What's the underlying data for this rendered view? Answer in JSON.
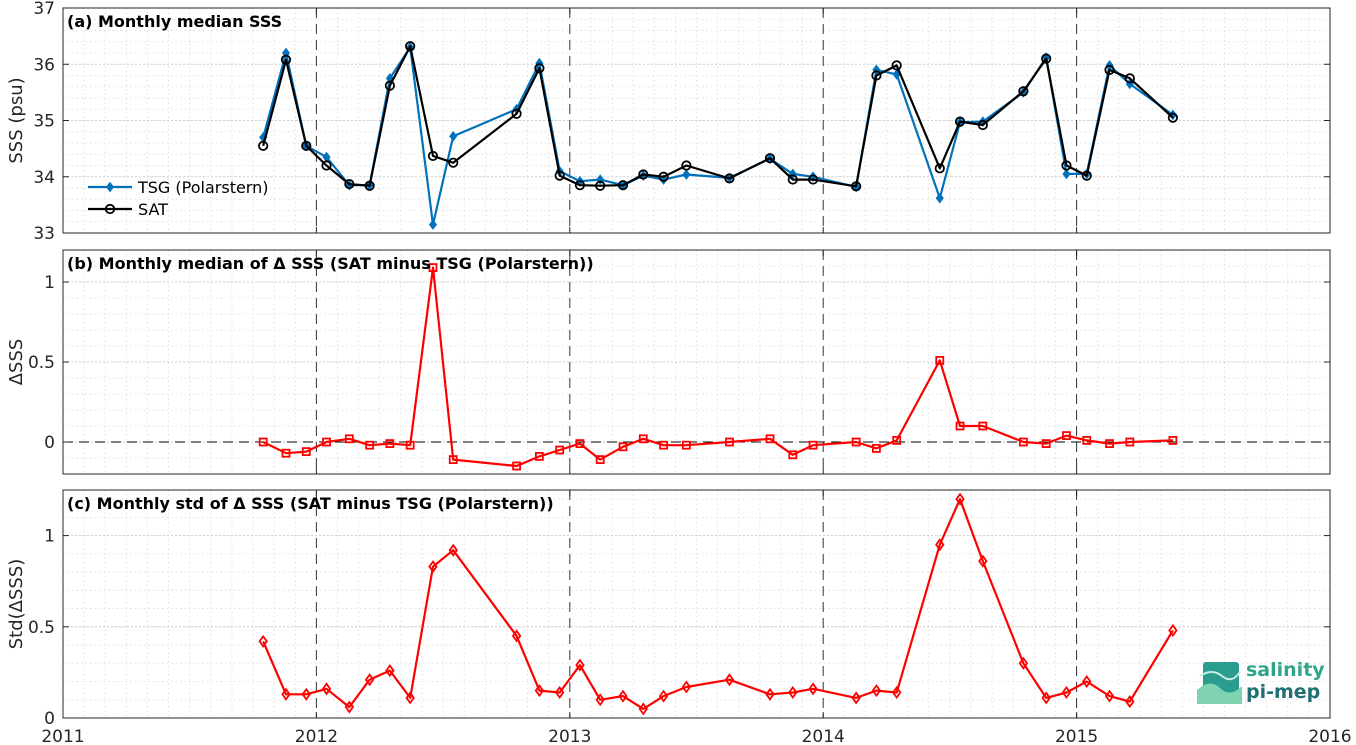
{
  "chart_data": [
    {
      "type": "line",
      "title": "(a) Monthly median SSS",
      "ylabel": "SSS (psu)",
      "xlim": [
        2011,
        2016
      ],
      "ylim": [
        33,
        37
      ],
      "yticks": [
        "33",
        "34",
        "35",
        "36",
        "37"
      ],
      "grid": true,
      "legend_placement": "lower-left",
      "series": [
        {
          "name": "TSG (Polarstern)",
          "color": "#0072bd",
          "marker": "diamond-filled",
          "x": [
            2011.79,
            2011.88,
            2011.96,
            2012.04,
            2012.13,
            2012.21,
            2012.29,
            2012.37,
            2012.46,
            2012.54,
            2012.79,
            2012.88,
            2012.96,
            2013.04,
            2013.12,
            2013.21,
            2013.29,
            2013.37,
            2013.46,
            2013.63,
            2013.79,
            2013.88,
            2013.96,
            2014.13,
            2014.21,
            2014.29,
            2014.46,
            2014.54,
            2014.63,
            2014.79,
            2014.88,
            2014.96,
            2015.04,
            2015.13,
            2015.21,
            2015.38
          ],
          "y": [
            34.7,
            36.2,
            34.55,
            34.35,
            33.85,
            33.85,
            35.75,
            36.3,
            33.15,
            34.72,
            35.2,
            36.02,
            34.1,
            33.92,
            33.95,
            33.85,
            34.02,
            33.95,
            34.04,
            33.98,
            34.32,
            34.05,
            34.0,
            33.82,
            35.9,
            35.82,
            33.62,
            34.97,
            34.98,
            35.5,
            36.12,
            34.05,
            34.05,
            35.98,
            35.65,
            35.1
          ]
        },
        {
          "name": "SAT",
          "color": "#000000",
          "marker": "circle-open",
          "x": [
            2011.79,
            2011.88,
            2011.96,
            2012.04,
            2012.13,
            2012.21,
            2012.29,
            2012.37,
            2012.46,
            2012.54,
            2012.79,
            2012.88,
            2012.96,
            2013.04,
            2013.12,
            2013.21,
            2013.29,
            2013.37,
            2013.46,
            2013.63,
            2013.79,
            2013.88,
            2013.96,
            2014.13,
            2014.21,
            2014.29,
            2014.46,
            2014.54,
            2014.63,
            2014.79,
            2014.88,
            2014.96,
            2015.04,
            2015.13,
            2015.21,
            2015.38
          ],
          "y": [
            34.55,
            36.08,
            34.55,
            34.2,
            33.87,
            33.84,
            35.62,
            36.32,
            34.37,
            34.25,
            35.12,
            35.93,
            34.02,
            33.85,
            33.84,
            33.85,
            34.04,
            34.0,
            34.2,
            33.97,
            34.33,
            33.95,
            33.95,
            33.83,
            35.8,
            35.98,
            34.15,
            34.98,
            34.92,
            35.52,
            36.1,
            34.2,
            34.02,
            35.9,
            35.75,
            35.05
          ]
        }
      ]
    },
    {
      "type": "line",
      "title": "(b) Monthly median of Δ SSS (SAT minus TSG (Polarstern))",
      "ylabel": "ΔSSS",
      "xlim": [
        2011,
        2016
      ],
      "ylim": [
        -0.2,
        1.2
      ],
      "yticks": [
        "0",
        "0.5",
        "1"
      ],
      "grid": true,
      "reference_line": 0,
      "series": [
        {
          "color": "#ff0000",
          "marker": "square-open",
          "x": [
            2011.79,
            2011.88,
            2011.96,
            2012.04,
            2012.13,
            2012.21,
            2012.29,
            2012.37,
            2012.46,
            2012.54,
            2012.79,
            2012.88,
            2012.96,
            2013.04,
            2013.12,
            2013.21,
            2013.29,
            2013.37,
            2013.46,
            2013.63,
            2013.79,
            2013.88,
            2013.96,
            2014.13,
            2014.21,
            2014.29,
            2014.46,
            2014.54,
            2014.63,
            2014.79,
            2014.88,
            2014.96,
            2015.04,
            2015.13,
            2015.21,
            2015.38
          ],
          "y": [
            0.0,
            -0.07,
            -0.06,
            0.0,
            0.02,
            -0.02,
            -0.01,
            -0.02,
            1.09,
            -0.11,
            -0.15,
            -0.09,
            -0.05,
            -0.01,
            -0.11,
            -0.03,
            0.02,
            -0.02,
            -0.02,
            0.0,
            0.02,
            -0.08,
            -0.02,
            0.0,
            -0.04,
            0.01,
            0.51,
            0.1,
            0.1,
            0.0,
            -0.01,
            0.04,
            0.01,
            -0.01,
            0.0,
            0.01
          ]
        }
      ]
    },
    {
      "type": "line",
      "title": "(c) Monthly std of Δ SSS (SAT minus TSG (Polarstern))",
      "ylabel": "Std(ΔSSS)",
      "xlim": [
        2011,
        2016
      ],
      "ylim": [
        0,
        1.25
      ],
      "xticks": [
        "2011",
        "2012",
        "2013",
        "2014",
        "2015",
        "2016"
      ],
      "yticks": [
        "0",
        "0.5",
        "1"
      ],
      "grid": true,
      "series": [
        {
          "color": "#ff0000",
          "marker": "diamond-open",
          "x": [
            2011.79,
            2011.88,
            2011.96,
            2012.04,
            2012.13,
            2012.21,
            2012.29,
            2012.37,
            2012.46,
            2012.54,
            2012.79,
            2012.88,
            2012.96,
            2013.04,
            2013.12,
            2013.21,
            2013.29,
            2013.37,
            2013.46,
            2013.63,
            2013.79,
            2013.88,
            2013.96,
            2014.13,
            2014.21,
            2014.29,
            2014.46,
            2014.54,
            2014.63,
            2014.79,
            2014.88,
            2014.96,
            2015.04,
            2015.13,
            2015.21,
            2015.38
          ],
          "y": [
            0.42,
            0.13,
            0.13,
            0.16,
            0.06,
            0.21,
            0.26,
            0.11,
            0.83,
            0.92,
            0.45,
            0.15,
            0.14,
            0.29,
            0.1,
            0.12,
            0.05,
            0.12,
            0.17,
            0.21,
            0.13,
            0.14,
            0.16,
            0.11,
            0.15,
            0.14,
            0.95,
            1.2,
            0.86,
            0.3,
            0.11,
            0.14,
            0.2,
            0.12,
            0.09,
            0.48
          ]
        }
      ]
    }
  ],
  "logo": {
    "line1": "salinity",
    "line2": "pi-mep"
  }
}
